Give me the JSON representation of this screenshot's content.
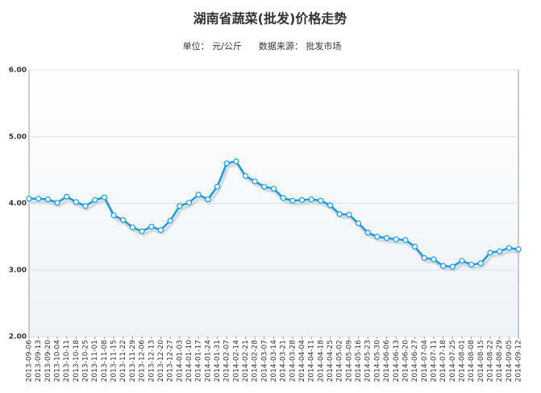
{
  "chart_data": {
    "type": "line",
    "title": "湖南省蔬菜(批发)价格走势",
    "subtitle": "单位： 元/公斤      数据来源： 批发市场",
    "categories": [
      "2013-09-06",
      "2013-09-13",
      "2013-09-20",
      "2013-10-04",
      "2013-10-11",
      "2013-10-18",
      "2013-10-25",
      "2013-11-01",
      "2013-11-08",
      "2013-11-15",
      "2013-11-22",
      "2013-11-29",
      "2013-12-06",
      "2013-12-13",
      "2013-12-20",
      "2013-12-27",
      "2014-01-03",
      "2014-01-10",
      "2014-01-17",
      "2014-01-24",
      "2014-01-31",
      "2014-02-07",
      "2014-02-14",
      "2014-02-21",
      "2014-02-28",
      "2014-03-07",
      "2014-03-14",
      "2014-03-21",
      "2014-03-28",
      "2014-04-04",
      "2014-04-11",
      "2014-04-18",
      "2014-04-25",
      "2014-05-02",
      "2014-05-09",
      "2014-05-16",
      "2014-05-23",
      "2014-05-30",
      "2014-06-06",
      "2014-06-13",
      "2014-06-20",
      "2014-06-27",
      "2014-07-04",
      "2014-07-11",
      "2014-07-18",
      "2014-07-25",
      "2014-08-01",
      "2014-08-08",
      "2014-08-15",
      "2014-08-22",
      "2014-08-29",
      "2014-09-05",
      "2014-09-12"
    ],
    "series": [
      {
        "name": "价格",
        "color": "#1a9ae0",
        "values": [
          4.07,
          4.07,
          4.06,
          4.01,
          4.1,
          4.02,
          3.96,
          4.05,
          4.09,
          3.82,
          3.75,
          3.64,
          3.58,
          3.65,
          3.6,
          3.74,
          3.96,
          4.01,
          4.13,
          4.06,
          4.25,
          4.6,
          4.63,
          4.41,
          4.33,
          4.25,
          4.22,
          4.08,
          4.04,
          4.05,
          4.06,
          4.04,
          3.97,
          3.84,
          3.83,
          3.7,
          3.56,
          3.5,
          3.48,
          3.46,
          3.45,
          3.35,
          3.18,
          3.16,
          3.06,
          3.05,
          3.14,
          3.08,
          3.1,
          3.26,
          3.28,
          3.33,
          3.31
        ]
      }
    ],
    "ylim": [
      2,
      6
    ],
    "yticks": [
      {
        "value": 2,
        "label": "2.00"
      },
      {
        "value": 3,
        "label": "3.00"
      },
      {
        "value": 4,
        "label": "4.00"
      },
      {
        "value": 5,
        "label": "5.00"
      },
      {
        "value": 6,
        "label": "6.00"
      }
    ],
    "grid": true
  }
}
